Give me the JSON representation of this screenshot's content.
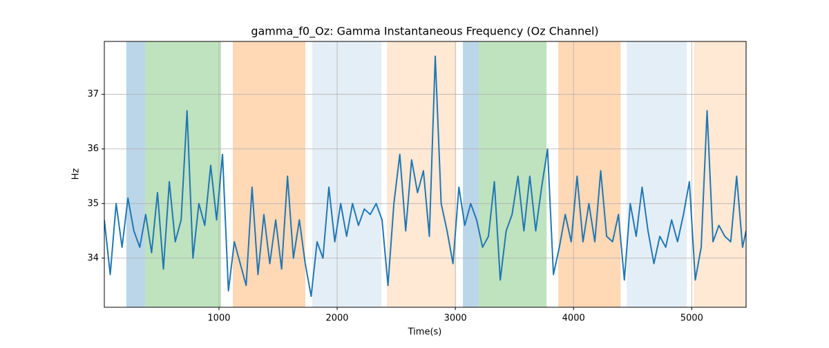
{
  "chart_data": {
    "type": "line",
    "title": "gamma_f0_Oz: Gamma Instantaneous Frequency (Oz Channel)",
    "xlabel": "Time(s)",
    "ylabel": "Hz",
    "xlim": [
      30,
      5460
    ],
    "ylim": [
      33.1,
      37.97
    ],
    "xticks": [
      1000,
      2000,
      3000,
      4000,
      5000
    ],
    "yticks": [
      34,
      35,
      36,
      37
    ],
    "grid": true,
    "spans": [
      {
        "x": [
          216,
          374
        ],
        "color": "#1f77b4",
        "alpha": 0.3
      },
      {
        "x": [
          374,
          1018
        ],
        "color": "#2ca02c",
        "alpha": 0.3
      },
      {
        "x": [
          1117,
          1731
        ],
        "color": "#ff7f0e",
        "alpha": 0.3
      },
      {
        "x": [
          1789,
          2374
        ],
        "color": "#1f77b4",
        "alpha": 0.12
      },
      {
        "x": [
          2421,
          3006
        ],
        "color": "#ff7f0e",
        "alpha": 0.18
      },
      {
        "x": [
          3064,
          3199
        ],
        "color": "#1f77b4",
        "alpha": 0.3
      },
      {
        "x": [
          3199,
          3772
        ],
        "color": "#2ca02c",
        "alpha": 0.3
      },
      {
        "x": [
          3871,
          4398
        ],
        "color": "#ff7f0e",
        "alpha": 0.3
      },
      {
        "x": [
          4450,
          4959
        ],
        "color": "#1f77b4",
        "alpha": 0.12
      },
      {
        "x": [
          5018,
          5462
        ],
        "color": "#ff7f0e",
        "alpha": 0.18
      }
    ],
    "x": [
      30,
      80,
      130,
      180,
      230,
      280,
      330,
      380,
      430,
      480,
      530,
      580,
      630,
      680,
      730,
      780,
      830,
      880,
      930,
      980,
      1030,
      1080,
      1130,
      1180,
      1230,
      1280,
      1330,
      1380,
      1430,
      1480,
      1530,
      1580,
      1630,
      1680,
      1730,
      1780,
      1830,
      1880,
      1930,
      1980,
      2030,
      2080,
      2130,
      2180,
      2230,
      2280,
      2330,
      2380,
      2430,
      2480,
      2530,
      2580,
      2630,
      2680,
      2730,
      2780,
      2830,
      2880,
      2930,
      2980,
      3030,
      3080,
      3130,
      3180,
      3230,
      3280,
      3330,
      3380,
      3430,
      3480,
      3530,
      3580,
      3630,
      3680,
      3730,
      3780,
      3830,
      3880,
      3930,
      3980,
      4030,
      4080,
      4130,
      4180,
      4230,
      4280,
      4330,
      4380,
      4430,
      4480,
      4530,
      4580,
      4630,
      4680,
      4730,
      4780,
      4830,
      4880,
      4930,
      4980,
      5030,
      5080,
      5130,
      5180,
      5230,
      5280,
      5330,
      5380,
      5430,
      5460
    ],
    "series": [
      {
        "color": "#1f77b4",
        "values": [
          34.7,
          33.7,
          35.0,
          34.2,
          35.1,
          34.5,
          34.2,
          34.8,
          34.1,
          35.2,
          33.8,
          35.4,
          34.3,
          34.7,
          36.7,
          34.0,
          35.0,
          34.6,
          35.7,
          34.7,
          35.9,
          33.4,
          34.3,
          33.9,
          33.5,
          35.3,
          33.7,
          34.8,
          33.9,
          34.7,
          33.8,
          35.5,
          34.0,
          34.7,
          33.9,
          33.3,
          34.3,
          34.0,
          35.3,
          34.3,
          35.0,
          34.4,
          35.0,
          34.6,
          34.9,
          34.8,
          35.0,
          34.7,
          33.5,
          35.0,
          35.9,
          34.5,
          35.8,
          35.2,
          35.6,
          34.4,
          37.7,
          35.0,
          34.5,
          33.9,
          35.3,
          34.6,
          35.0,
          34.7,
          34.2,
          34.4,
          35.4,
          33.6,
          34.5,
          34.8,
          35.5,
          34.5,
          35.5,
          34.5,
          35.3,
          36.0,
          33.7,
          34.2,
          34.8,
          34.3,
          35.5,
          34.3,
          35.0,
          34.3,
          35.6,
          34.4,
          34.3,
          34.8,
          33.6,
          35.0,
          34.4,
          35.3,
          34.5,
          33.9,
          34.4,
          34.2,
          34.7,
          34.3,
          34.8,
          35.4,
          33.6,
          34.2,
          36.7,
          34.3,
          34.6,
          34.4,
          34.3,
          35.5,
          34.2,
          34.5
        ]
      }
    ]
  }
}
